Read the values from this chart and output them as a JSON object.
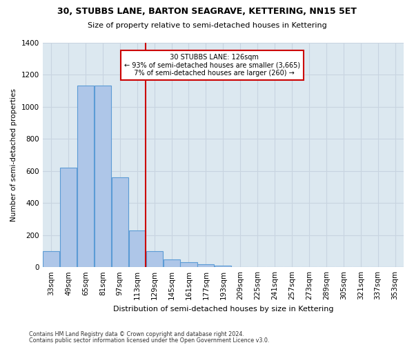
{
  "title": "30, STUBBS LANE, BARTON SEAGRAVE, KETTERING, NN15 5ET",
  "subtitle": "Size of property relative to semi-detached houses in Kettering",
  "xlabel": "Distribution of semi-detached houses by size in Kettering",
  "ylabel": "Number of semi-detached properties",
  "footer_line1": "Contains HM Land Registry data © Crown copyright and database right 2024.",
  "footer_line2": "Contains public sector information licensed under the Open Government Licence v3.0.",
  "property_label": "30 STUBBS LANE: 126sqm",
  "pct_smaller": 93,
  "count_smaller": 3665,
  "pct_larger": 7,
  "count_larger": 260,
  "bin_labels": [
    "33sqm",
    "49sqm",
    "65sqm",
    "81sqm",
    "97sqm",
    "113sqm",
    "129sqm",
    "145sqm",
    "161sqm",
    "177sqm",
    "193sqm",
    "209sqm",
    "225sqm",
    "241sqm",
    "257sqm",
    "273sqm",
    "289sqm",
    "305sqm",
    "321sqm",
    "337sqm",
    "353sqm"
  ],
  "bin_starts": [
    33,
    49,
    65,
    81,
    97,
    113,
    129,
    145,
    161,
    177,
    193,
    209,
    225,
    241,
    257,
    273,
    289,
    305,
    321,
    337,
    353
  ],
  "bin_width": 16,
  "bin_values": [
    100,
    620,
    1130,
    1130,
    560,
    230,
    100,
    50,
    30,
    20,
    10,
    0,
    0,
    0,
    0,
    0,
    0,
    0,
    0,
    0,
    0
  ],
  "bar_color": "#aec6e8",
  "bar_edge_color": "#5b9bd5",
  "vline_x": 129,
  "vline_color": "#cc0000",
  "grid_color": "#c8d4e0",
  "background_color": "#dce8f0",
  "ylim_max": 1400,
  "yticks": [
    0,
    200,
    400,
    600,
    800,
    1000,
    1200,
    1400
  ]
}
